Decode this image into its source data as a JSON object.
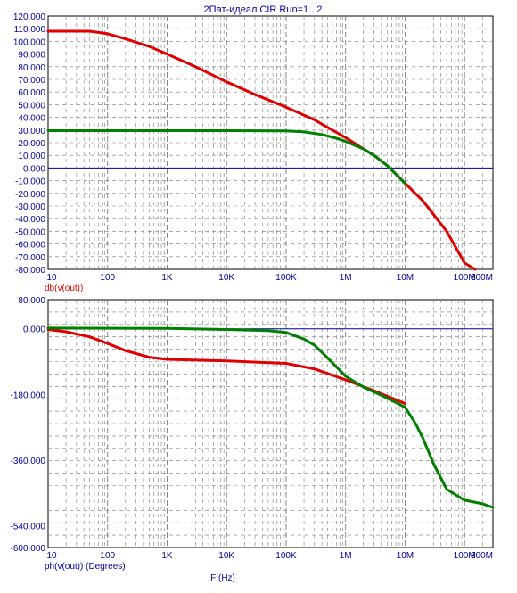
{
  "title": "2Пат-идеал.CIR Run=1...2",
  "xlabel": "F (Hz)",
  "colors": {
    "series1": "#e00000",
    "series2": "#008000",
    "zero_line": "#0000a0",
    "grid": "#7a7a7a",
    "text": "#0000a0",
    "trace_label": "#e00000"
  },
  "chart_data": [
    {
      "type": "line",
      "x_scale": "log",
      "xlim": [
        10,
        300000000
      ],
      "ylim": [
        -80,
        120
      ],
      "xticks": [
        {
          "v": 10,
          "label": "10"
        },
        {
          "v": 100,
          "label": "100"
        },
        {
          "v": 1000,
          "label": "1K"
        },
        {
          "v": 10000,
          "label": "10K"
        },
        {
          "v": 100000,
          "label": "100K"
        },
        {
          "v": 1000000,
          "label": "1M"
        },
        {
          "v": 10000000,
          "label": "10M"
        },
        {
          "v": 100000000,
          "label": "100M"
        },
        {
          "v": 300000000,
          "label": "300M"
        }
      ],
      "yticks": [
        {
          "v": 120,
          "label": "120.000"
        },
        {
          "v": 110,
          "label": "110.000"
        },
        {
          "v": 100,
          "label": "100.000"
        },
        {
          "v": 90,
          "label": "90.000"
        },
        {
          "v": 80,
          "label": "80.000"
        },
        {
          "v": 70,
          "label": "70.000"
        },
        {
          "v": 60,
          "label": "60.000"
        },
        {
          "v": 50,
          "label": "50.000"
        },
        {
          "v": 40,
          "label": "40.000"
        },
        {
          "v": 30,
          "label": "30.000"
        },
        {
          "v": 20,
          "label": "20.000"
        },
        {
          "v": 10,
          "label": "10.000"
        },
        {
          "v": 0,
          "label": "0.000"
        },
        {
          "v": -10,
          "label": "-10.000"
        },
        {
          "v": -20,
          "label": "-20.000"
        },
        {
          "v": -30,
          "label": "-30.000"
        },
        {
          "v": -40,
          "label": "-40.000"
        },
        {
          "v": -50,
          "label": "-50.000"
        },
        {
          "v": -60,
          "label": "-60.000"
        },
        {
          "v": -70,
          "label": "-70.000"
        },
        {
          "v": -80,
          "label": "-80.000"
        }
      ],
      "trace_label": "db(v(out))",
      "zero_line": 0,
      "grid": true,
      "series": [
        {
          "color": "#e00000",
          "x": [
            10,
            30,
            50,
            100,
            200,
            500,
            1000,
            3000,
            10000,
            30000,
            100000,
            300000,
            1000000,
            2000000,
            3000000,
            5000000,
            10000000,
            20000000,
            50000000,
            100000000,
            150000000
          ],
          "y": [
            108,
            108,
            108,
            106,
            102,
            96,
            90,
            80,
            68,
            58,
            48,
            38,
            24,
            15,
            10,
            2,
            -12,
            -26,
            -50,
            -75,
            -80
          ]
        },
        {
          "color": "#008000",
          "x": [
            10,
            100,
            1000,
            10000,
            100000,
            200000,
            400000,
            700000,
            1000000,
            2000000,
            3000000,
            5000000,
            10000000
          ],
          "y": [
            29.5,
            29.5,
            29.5,
            29.5,
            29.3,
            28.5,
            26.5,
            23.5,
            21,
            15,
            10,
            2,
            -12
          ]
        }
      ]
    },
    {
      "type": "line",
      "x_scale": "log",
      "xlim": [
        10,
        300000000
      ],
      "ylim": [
        -600,
        80
      ],
      "xticks": [
        {
          "v": 10,
          "label": "10"
        },
        {
          "v": 100,
          "label": "100"
        },
        {
          "v": 1000,
          "label": "1K"
        },
        {
          "v": 10000,
          "label": "10K"
        },
        {
          "v": 100000,
          "label": "100K"
        },
        {
          "v": 1000000,
          "label": "1M"
        },
        {
          "v": 10000000,
          "label": "10M"
        },
        {
          "v": 100000000,
          "label": "100M"
        },
        {
          "v": 300000000,
          "label": "300M"
        }
      ],
      "yticks": [
        {
          "v": 80,
          "label": "80.000"
        },
        {
          "v": 0,
          "label": "0.000"
        },
        {
          "v": -180,
          "label": "-180.000"
        },
        {
          "v": -360,
          "label": "-360.000"
        },
        {
          "v": -540,
          "label": "-540.000"
        },
        {
          "v": -600,
          "label": "-600.000"
        }
      ],
      "trace_label": "ph(v(out)) (Degrees)",
      "zero_line": 0,
      "grid": true,
      "series": [
        {
          "color": "#e00000",
          "x": [
            10,
            20,
            50,
            100,
            200,
            500,
            1000,
            10000,
            100000,
            300000,
            1000000,
            3000000,
            5000000,
            10000000
          ],
          "y": [
            -2,
            -8,
            -22,
            -40,
            -60,
            -78,
            -84,
            -88,
            -95,
            -110,
            -140,
            -170,
            -185,
            -205
          ]
        },
        {
          "color": "#008000",
          "x": [
            10,
            1000,
            10000,
            50000,
            100000,
            200000,
            300000,
            500000,
            1000000,
            2000000,
            5000000,
            10000000,
            15000000,
            20000000,
            30000000,
            50000000,
            100000000,
            200000000,
            300000000
          ],
          "y": [
            2,
            1,
            -2,
            -5,
            -10,
            -28,
            -45,
            -80,
            -130,
            -160,
            -190,
            -215,
            -260,
            -300,
            -370,
            -440,
            -470,
            -480,
            -490
          ]
        }
      ]
    }
  ]
}
